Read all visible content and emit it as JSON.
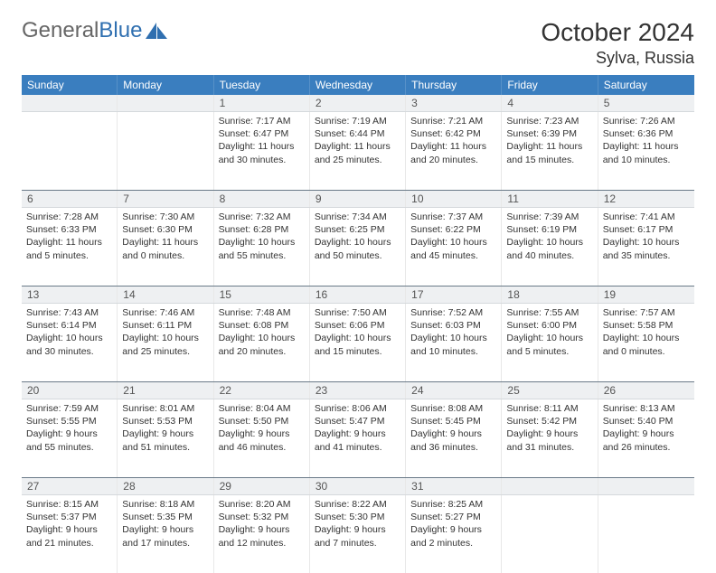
{
  "brand": {
    "part1": "General",
    "part2": "Blue"
  },
  "title": "October 2024",
  "location": "Sylva, Russia",
  "weekdays": [
    "Sunday",
    "Monday",
    "Tuesday",
    "Wednesday",
    "Thursday",
    "Friday",
    "Saturday"
  ],
  "colors": {
    "header_bg": "#3a7ebf",
    "daynum_bg": "#eef0f2",
    "sep": "#6a7a88",
    "brand_blue": "#2f6fb0"
  },
  "weeks": [
    [
      {
        "num": "",
        "lines": []
      },
      {
        "num": "",
        "lines": []
      },
      {
        "num": "1",
        "lines": [
          "Sunrise: 7:17 AM",
          "Sunset: 6:47 PM",
          "Daylight: 11 hours",
          "and 30 minutes."
        ]
      },
      {
        "num": "2",
        "lines": [
          "Sunrise: 7:19 AM",
          "Sunset: 6:44 PM",
          "Daylight: 11 hours",
          "and 25 minutes."
        ]
      },
      {
        "num": "3",
        "lines": [
          "Sunrise: 7:21 AM",
          "Sunset: 6:42 PM",
          "Daylight: 11 hours",
          "and 20 minutes."
        ]
      },
      {
        "num": "4",
        "lines": [
          "Sunrise: 7:23 AM",
          "Sunset: 6:39 PM",
          "Daylight: 11 hours",
          "and 15 minutes."
        ]
      },
      {
        "num": "5",
        "lines": [
          "Sunrise: 7:26 AM",
          "Sunset: 6:36 PM",
          "Daylight: 11 hours",
          "and 10 minutes."
        ]
      }
    ],
    [
      {
        "num": "6",
        "lines": [
          "Sunrise: 7:28 AM",
          "Sunset: 6:33 PM",
          "Daylight: 11 hours",
          "and 5 minutes."
        ]
      },
      {
        "num": "7",
        "lines": [
          "Sunrise: 7:30 AM",
          "Sunset: 6:30 PM",
          "Daylight: 11 hours",
          "and 0 minutes."
        ]
      },
      {
        "num": "8",
        "lines": [
          "Sunrise: 7:32 AM",
          "Sunset: 6:28 PM",
          "Daylight: 10 hours",
          "and 55 minutes."
        ]
      },
      {
        "num": "9",
        "lines": [
          "Sunrise: 7:34 AM",
          "Sunset: 6:25 PM",
          "Daylight: 10 hours",
          "and 50 minutes."
        ]
      },
      {
        "num": "10",
        "lines": [
          "Sunrise: 7:37 AM",
          "Sunset: 6:22 PM",
          "Daylight: 10 hours",
          "and 45 minutes."
        ]
      },
      {
        "num": "11",
        "lines": [
          "Sunrise: 7:39 AM",
          "Sunset: 6:19 PM",
          "Daylight: 10 hours",
          "and 40 minutes."
        ]
      },
      {
        "num": "12",
        "lines": [
          "Sunrise: 7:41 AM",
          "Sunset: 6:17 PM",
          "Daylight: 10 hours",
          "and 35 minutes."
        ]
      }
    ],
    [
      {
        "num": "13",
        "lines": [
          "Sunrise: 7:43 AM",
          "Sunset: 6:14 PM",
          "Daylight: 10 hours",
          "and 30 minutes."
        ]
      },
      {
        "num": "14",
        "lines": [
          "Sunrise: 7:46 AM",
          "Sunset: 6:11 PM",
          "Daylight: 10 hours",
          "and 25 minutes."
        ]
      },
      {
        "num": "15",
        "lines": [
          "Sunrise: 7:48 AM",
          "Sunset: 6:08 PM",
          "Daylight: 10 hours",
          "and 20 minutes."
        ]
      },
      {
        "num": "16",
        "lines": [
          "Sunrise: 7:50 AM",
          "Sunset: 6:06 PM",
          "Daylight: 10 hours",
          "and 15 minutes."
        ]
      },
      {
        "num": "17",
        "lines": [
          "Sunrise: 7:52 AM",
          "Sunset: 6:03 PM",
          "Daylight: 10 hours",
          "and 10 minutes."
        ]
      },
      {
        "num": "18",
        "lines": [
          "Sunrise: 7:55 AM",
          "Sunset: 6:00 PM",
          "Daylight: 10 hours",
          "and 5 minutes."
        ]
      },
      {
        "num": "19",
        "lines": [
          "Sunrise: 7:57 AM",
          "Sunset: 5:58 PM",
          "Daylight: 10 hours",
          "and 0 minutes."
        ]
      }
    ],
    [
      {
        "num": "20",
        "lines": [
          "Sunrise: 7:59 AM",
          "Sunset: 5:55 PM",
          "Daylight: 9 hours",
          "and 55 minutes."
        ]
      },
      {
        "num": "21",
        "lines": [
          "Sunrise: 8:01 AM",
          "Sunset: 5:53 PM",
          "Daylight: 9 hours",
          "and 51 minutes."
        ]
      },
      {
        "num": "22",
        "lines": [
          "Sunrise: 8:04 AM",
          "Sunset: 5:50 PM",
          "Daylight: 9 hours",
          "and 46 minutes."
        ]
      },
      {
        "num": "23",
        "lines": [
          "Sunrise: 8:06 AM",
          "Sunset: 5:47 PM",
          "Daylight: 9 hours",
          "and 41 minutes."
        ]
      },
      {
        "num": "24",
        "lines": [
          "Sunrise: 8:08 AM",
          "Sunset: 5:45 PM",
          "Daylight: 9 hours",
          "and 36 minutes."
        ]
      },
      {
        "num": "25",
        "lines": [
          "Sunrise: 8:11 AM",
          "Sunset: 5:42 PM",
          "Daylight: 9 hours",
          "and 31 minutes."
        ]
      },
      {
        "num": "26",
        "lines": [
          "Sunrise: 8:13 AM",
          "Sunset: 5:40 PM",
          "Daylight: 9 hours",
          "and 26 minutes."
        ]
      }
    ],
    [
      {
        "num": "27",
        "lines": [
          "Sunrise: 8:15 AM",
          "Sunset: 5:37 PM",
          "Daylight: 9 hours",
          "and 21 minutes."
        ]
      },
      {
        "num": "28",
        "lines": [
          "Sunrise: 8:18 AM",
          "Sunset: 5:35 PM",
          "Daylight: 9 hours",
          "and 17 minutes."
        ]
      },
      {
        "num": "29",
        "lines": [
          "Sunrise: 8:20 AM",
          "Sunset: 5:32 PM",
          "Daylight: 9 hours",
          "and 12 minutes."
        ]
      },
      {
        "num": "30",
        "lines": [
          "Sunrise: 8:22 AM",
          "Sunset: 5:30 PM",
          "Daylight: 9 hours",
          "and 7 minutes."
        ]
      },
      {
        "num": "31",
        "lines": [
          "Sunrise: 8:25 AM",
          "Sunset: 5:27 PM",
          "Daylight: 9 hours",
          "and 2 minutes."
        ]
      },
      {
        "num": "",
        "lines": []
      },
      {
        "num": "",
        "lines": []
      }
    ]
  ]
}
